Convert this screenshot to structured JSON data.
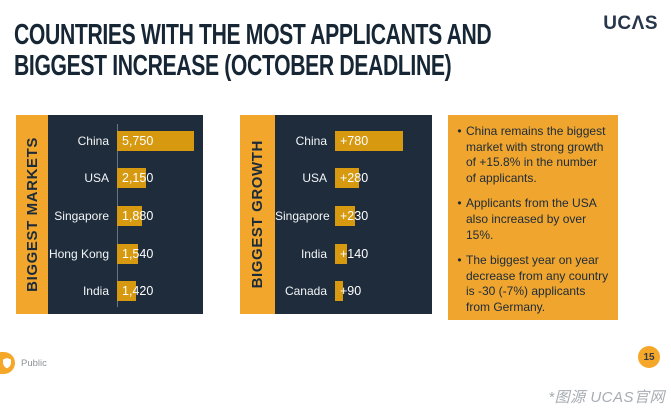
{
  "header": {
    "title_line1": "COUNTRIES WITH THE MOST APPLICANTS AND",
    "title_line2": "BIGGEST INCREASE (OCTOBER DEADLINE)",
    "logo": "UCΛS"
  },
  "chart_data": [
    {
      "type": "bar",
      "orientation": "horizontal",
      "panel_label": "BIGGEST MARKETS",
      "categories": [
        "China",
        "USA",
        "Singapore",
        "Hong Kong",
        "India"
      ],
      "values": [
        5750,
        2150,
        1880,
        1540,
        1420
      ],
      "value_labels": [
        "5,750",
        "2,150",
        "1,880",
        "1,540",
        "1,420"
      ],
      "xlim": [
        0,
        5750
      ],
      "bar_color": "#d6990f",
      "grid": false,
      "legend": "none"
    },
    {
      "type": "bar",
      "orientation": "horizontal",
      "panel_label": "BIGGEST GROWTH",
      "categories": [
        "China",
        "USA",
        "Singapore",
        "India",
        "Canada"
      ],
      "values": [
        780,
        280,
        230,
        140,
        90
      ],
      "value_labels": [
        "+780",
        "+280",
        "+230",
        "+140",
        "+90"
      ],
      "xlim": [
        0,
        780
      ],
      "bar_color": "#d6990f",
      "grid": false,
      "legend": "none"
    }
  ],
  "notes": {
    "bullet_char": "•",
    "bullets": [
      "China remains the biggest market with strong growth of +15.8% in the number of applicants.",
      "Applicants from the USA also increased by over 15%.",
      "The biggest year on year decrease from any country is -30 (-7%) applicants from Germany."
    ]
  },
  "footer": {
    "classification": "Public",
    "page_number": "15",
    "caption": "*图源 UCAS官网"
  },
  "colors": {
    "navy_panel": "#1e2c3c",
    "title_navy": "#162634",
    "bar_gold": "#d6990f",
    "strip_yellow": "#f2a72c",
    "notes_orange": "#efa52e",
    "badge_orange": "#f5a72a"
  }
}
